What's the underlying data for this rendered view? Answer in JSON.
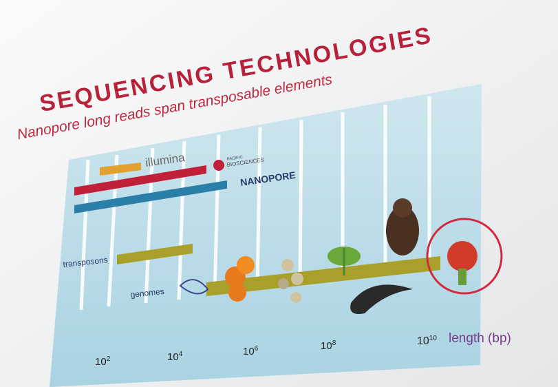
{
  "slide": {
    "title": "SEQUENCING TECHNOLOGIES",
    "subtitle": "Nanopore long reads span transposable elements",
    "logos": {
      "illumina": "illumina",
      "pacbio_top": "PACIFIC",
      "pacbio_bottom": "BIOSCIENCES",
      "nanopore": "NANOPORE"
    },
    "labels": {
      "transposons": "transposons",
      "genomes": "genomes",
      "axis": "length (bp)"
    },
    "ticks": [
      {
        "base": "10",
        "exp": "2"
      },
      {
        "base": "10",
        "exp": "4"
      },
      {
        "base": "10",
        "exp": "6"
      },
      {
        "base": "10",
        "exp": "8"
      },
      {
        "base": "10",
        "exp": "10"
      }
    ]
  }
}
